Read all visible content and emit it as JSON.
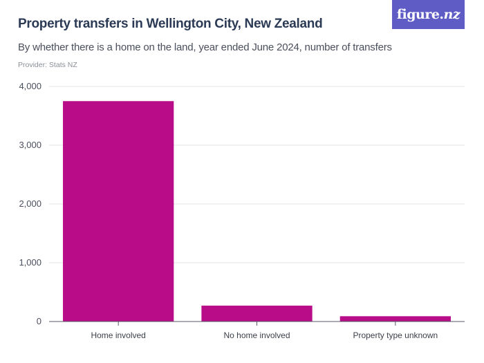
{
  "header": {
    "title": "Property transfers in Wellington City, New Zealand",
    "subtitle": "By whether there is a home on the land, year ended June 2024, number of transfers",
    "provider": "Provider: Stats NZ"
  },
  "logo": {
    "text": "figure.",
    "text_suffix": "nz",
    "background": "#5f5cc6"
  },
  "chart_data": {
    "type": "bar",
    "categories": [
      "Home involved",
      "No home involved",
      "Property type unknown"
    ],
    "values": [
      3750,
      270,
      90
    ],
    "ylim": [
      0,
      4000
    ],
    "yticks": [
      0,
      1000,
      2000,
      3000,
      4000
    ],
    "ytick_labels": [
      "0",
      "1,000",
      "2,000",
      "3,000",
      "4,000"
    ],
    "grid": true,
    "bar_color": "#b80c88"
  }
}
